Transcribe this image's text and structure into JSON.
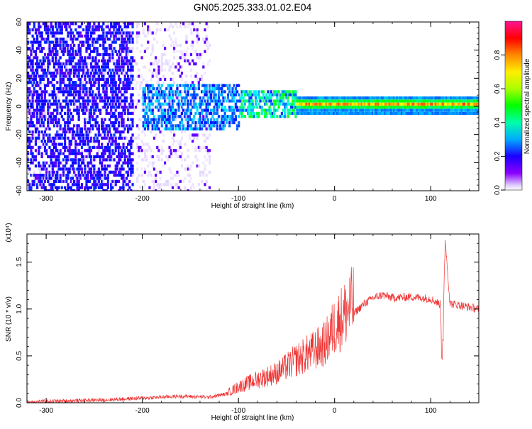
{
  "figure": {
    "title": "GN05.2025.333.01.02.E04"
  },
  "chart_data": [
    {
      "type": "heatmap",
      "xlabel": "Height of straight line (km)",
      "ylabel": "Frequency (Hz)",
      "xlim": [
        -320,
        150
      ],
      "ylim": [
        -60,
        60
      ],
      "x_ticks": [
        -300,
        -200,
        -100,
        0,
        100
      ],
      "x_tick_labels": [
        "-300",
        "-200",
        "-100",
        "0",
        "100"
      ],
      "y_ticks": [
        -60,
        -40,
        -20,
        0,
        20,
        40,
        60
      ],
      "y_tick_labels": [
        "-60",
        "-40",
        "-20",
        "0",
        "20",
        "40",
        "60"
      ],
      "colorbar": {
        "label": "Normalized spectral amplitude",
        "range": [
          0.0,
          1.0
        ],
        "ticks": [
          0.0,
          0.2,
          0.4,
          0.6,
          0.8
        ],
        "tick_labels": [
          "0.0",
          "0.2",
          "0.4",
          "0.6",
          "0.8"
        ],
        "colormap": "hsv",
        "low_color": "#ffffff"
      },
      "regions": [
        {
          "x_range": [
            -320,
            -210
          ],
          "freq_halfwidth": 60,
          "amplitude": 0.15,
          "description": "noise"
        },
        {
          "x_range": [
            -200,
            -130
          ],
          "freq_halfwidth": 60,
          "amplitude": 0.08,
          "description": "faint noise"
        },
        {
          "x_range": [
            -200,
            -100
          ],
          "freq_halfwidth": 18,
          "amplitude": 0.25
        },
        {
          "x_range": [
            -100,
            -40
          ],
          "freq_halfwidth": 12,
          "amplitude": 0.45
        },
        {
          "x_range": [
            -40,
            150
          ],
          "freq_halfwidth": 5,
          "amplitude": 0.9
        }
      ],
      "grid": false
    },
    {
      "type": "line",
      "xlabel": "Height of straight line (km)",
      "ylabel": "SNR (10 * v/v)",
      "y_multiplier_label": "(x10⁴)",
      "xlim": [
        -320,
        150
      ],
      "ylim": [
        0,
        1.8
      ],
      "x_ticks": [
        -300,
        -200,
        -100,
        0,
        100
      ],
      "x_tick_labels": [
        "-300",
        "-200",
        "-100",
        "0",
        "100"
      ],
      "y_ticks": [
        0.0,
        0.5,
        1.0,
        1.5
      ],
      "y_tick_labels": [
        "0.0",
        "0.5",
        "1.0",
        "1.5"
      ],
      "series_color": "#ee3333",
      "series": [
        {
          "x": [
            -320,
            -280,
            -240,
            -200,
            -160,
            -130,
            -110,
            -100,
            -80,
            -60,
            -40,
            -30,
            -20,
            -10,
            0,
            10,
            20,
            30,
            40,
            50,
            60,
            80,
            100,
            110,
            112,
            115,
            120,
            150
          ],
          "values": [
            0.01,
            0.02,
            0.03,
            0.05,
            0.07,
            0.06,
            0.1,
            0.15,
            0.22,
            0.28,
            0.4,
            0.45,
            0.5,
            0.55,
            0.72,
            0.83,
            0.95,
            1.05,
            1.12,
            1.15,
            1.12,
            1.13,
            1.11,
            1.05,
            0.45,
            1.75,
            1.06,
            1.0
          ]
        }
      ],
      "grid": false
    }
  ]
}
